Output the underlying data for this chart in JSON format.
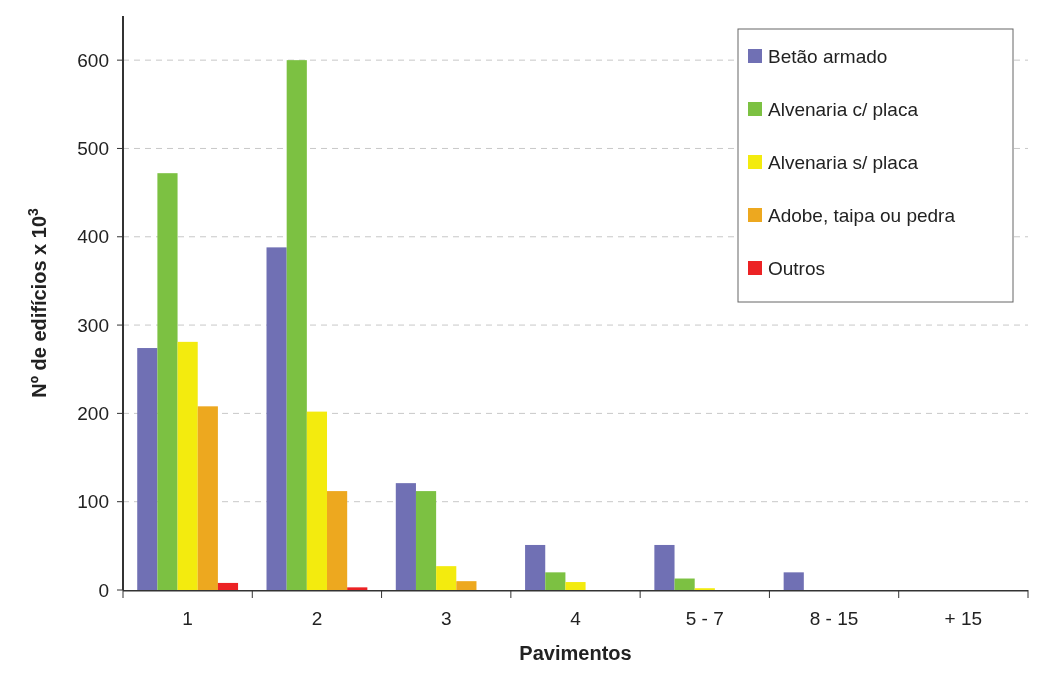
{
  "chart_data": {
    "type": "bar",
    "xlabel": "Pavimentos",
    "ylabel": "Nº de edifícios x 10$^{3}$",
    "categories": [
      "1",
      "2",
      "3",
      "4",
      "5 - 7",
      "8 - 15",
      "+ 15"
    ],
    "series": [
      {
        "name": "Betão armado",
        "color": "#7070b4",
        "values": [
          274,
          388,
          121,
          51,
          51,
          20,
          0
        ]
      },
      {
        "name": "Alvenaria c/ placa",
        "color": "#7cc142",
        "values": [
          472,
          600,
          112,
          20,
          13,
          0,
          0
        ]
      },
      {
        "name": "Alvenaria s/ placa",
        "color": "#f3eb0e",
        "values": [
          281,
          202,
          27,
          9,
          2,
          0,
          0
        ]
      },
      {
        "name": "Adobe, taipa ou pedra",
        "color": "#eda81f",
        "values": [
          208,
          112,
          10,
          0,
          0,
          0,
          0
        ]
      },
      {
        "name": "Outros",
        "color": "#ec2224",
        "values": [
          8,
          3,
          0,
          0,
          0,
          0,
          0
        ]
      }
    ],
    "ylim": [
      0,
      650
    ],
    "yticks": [
      0,
      100,
      200,
      300,
      400,
      500,
      600
    ],
    "grid": "y",
    "legend": "top right"
  }
}
